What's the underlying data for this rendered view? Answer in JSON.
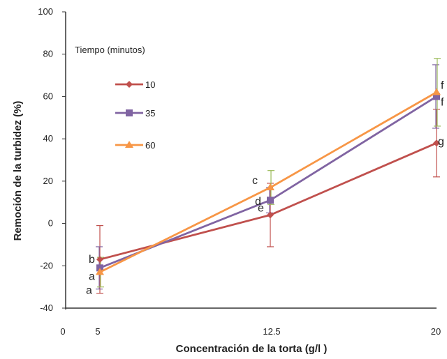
{
  "chart_data": {
    "type": "line",
    "title": "",
    "xlabel": "Concentración de la torta (g/l )",
    "ylabel": "Remoción de la turbidez  (%)",
    "x": [
      5,
      12.5,
      20
    ],
    "xlim": [
      0,
      20
    ],
    "x_ticks": [
      "0",
      "5",
      "12.5",
      "20"
    ],
    "ylim": [
      -40,
      100
    ],
    "y_ticks": [
      "-40",
      "-20",
      "0",
      "20",
      "40",
      "60",
      "80",
      "100"
    ],
    "grid": false,
    "legend_title": "Tiempo (minutos)",
    "legend_position": "top-left",
    "series": [
      {
        "name": "10",
        "color": "#c0504d",
        "marker": "diamond",
        "values": [
          -17,
          4,
          38
        ],
        "errors": [
          16,
          15,
          16
        ],
        "letters": [
          "b",
          "e",
          "g"
        ]
      },
      {
        "name": "35",
        "color": "#8064a2",
        "marker": "square",
        "values": [
          -21,
          11,
          60
        ],
        "errors": [
          10,
          6,
          15
        ],
        "letters": [
          "a",
          "d",
          "f"
        ]
      },
      {
        "name": "60",
        "color": "#f79646",
        "marker": "triangle",
        "values": [
          -23,
          17,
          62
        ],
        "errors": [
          7,
          8,
          16
        ],
        "error_color": "#9bbb59",
        "letters": [
          "a",
          "c",
          "f"
        ]
      }
    ]
  }
}
